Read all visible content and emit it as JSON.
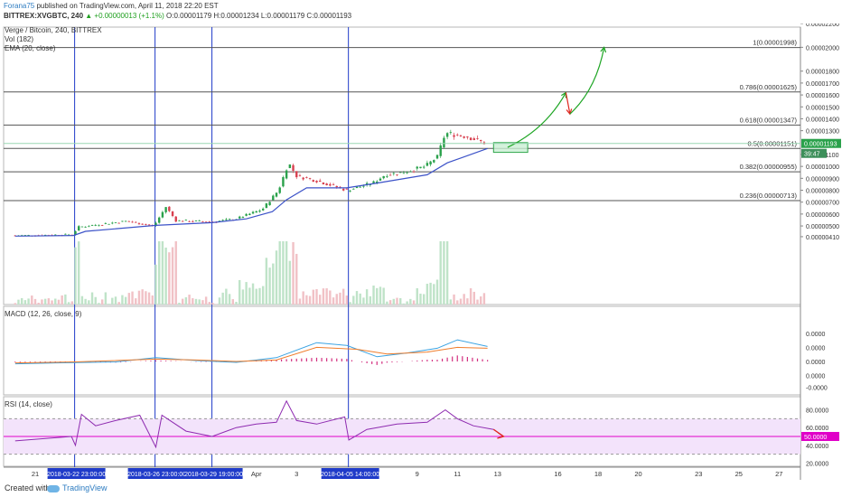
{
  "header": {
    "author": "Forana75",
    "published_text": " published on TradingView.com, April 11, 2018 22:20 EST",
    "symbol": "BITTREX:XVGBTC, 240",
    "change": "▲ +0.00000013 (+1.1%)",
    "ohlc": "O:0.00001179 H:0.00001234 L:0.00001179 C:0.00001193"
  },
  "legend": {
    "title": "Verge / Bitcoin, 240, BITTREX",
    "vol": "Vol (182)",
    "ema": "EMA (20, close)",
    "macd": "MACD (12, 26, close, 9)",
    "rsi": "RSI (14, close)"
  },
  "footer": {
    "created_with": "Created with",
    "brand": "TradingView"
  },
  "colors": {
    "up": "#2aa14b",
    "down": "#d8404f",
    "ema": "#3c52c8",
    "macd": "#3aa3e3",
    "signal": "#ef7d2c",
    "rsi": "#8e2bb0",
    "fib": "#555555",
    "vline": "#1f3bc9",
    "zone": "#2ea64a",
    "arrow_up": "#1fa625",
    "arrow_down": "#e0241e",
    "rsi50": "#e000c8"
  },
  "chart_data": {
    "type": "candlestick",
    "y_ticks": [
      "0.00002200",
      "0.00002000",
      "0.00001800",
      "0.00001700",
      "0.00001600",
      "0.00001500",
      "0.00001400",
      "0.00001300",
      "0.00001100",
      "0.00001000",
      "0.00000900",
      "0.00000800",
      "0.00000700",
      "0.00000600",
      "0.00000500",
      "0.00000410"
    ],
    "y_tick_values": [
      2200,
      2000,
      1800,
      1700,
      1600,
      1500,
      1400,
      1300,
      1100,
      1000,
      900,
      800,
      700,
      600,
      500,
      410
    ],
    "last_price": {
      "label": "0.00001193",
      "value": 1193,
      "countdown": "39:47"
    },
    "fib_levels": [
      {
        "label": "1(0.00001998)",
        "value": 1998
      },
      {
        "label": "0.786(0.00001625)",
        "value": 1625
      },
      {
        "label": "0.618(0.00001347)",
        "value": 1347
      },
      {
        "label": "0.5(0.00001151)",
        "value": 1151
      },
      {
        "label": "0.382(0.00000955)",
        "value": 955
      },
      {
        "label": "0.236(0.00000713)",
        "value": 713
      }
    ],
    "x_ticks": [
      "21",
      "Apr",
      "3",
      "9",
      "11",
      "13",
      "16",
      "18",
      "20",
      "23",
      "25",
      "27"
    ],
    "x_tick_days": [
      21,
      32,
      34,
      40,
      42,
      44,
      47,
      49,
      51,
      54,
      56,
      58
    ],
    "vertical_markers": [
      {
        "label": "2018-03-22 23:00:00",
        "day": 22.96
      },
      {
        "label": "2018-03-26 23:00:00",
        "day": 26.96
      },
      {
        "label": "2018-03-29 19:00:00",
        "day": 29.79
      },
      {
        "label": "2018-04-05 14:00:00",
        "day": 36.58
      }
    ],
    "price_path": [
      [
        20,
        420
      ],
      [
        22.9,
        428
      ],
      [
        23.1,
        490
      ],
      [
        25.5,
        540
      ],
      [
        26.9,
        500
      ],
      [
        27.5,
        660
      ],
      [
        28,
        545
      ],
      [
        29.8,
        535
      ],
      [
        31,
        560
      ],
      [
        32.3,
        640
      ],
      [
        33.1,
        800
      ],
      [
        33.6,
        1030
      ],
      [
        34,
        920
      ],
      [
        35,
        880
      ],
      [
        36.5,
        800
      ],
      [
        37.8,
        860
      ],
      [
        38.4,
        930
      ],
      [
        39.3,
        950
      ],
      [
        40.4,
        1000
      ],
      [
        41,
        1080
      ],
      [
        41.4,
        1280
      ],
      [
        42.5,
        1250
      ],
      [
        43.4,
        1193
      ]
    ],
    "ema_path": [
      [
        20,
        415
      ],
      [
        22.9,
        420
      ],
      [
        23.5,
        455
      ],
      [
        27,
        505
      ],
      [
        29.8,
        528
      ],
      [
        31.5,
        560
      ],
      [
        32.8,
        620
      ],
      [
        33.5,
        720
      ],
      [
        34.5,
        820
      ],
      [
        36.5,
        820
      ],
      [
        38,
        860
      ],
      [
        40.5,
        930
      ],
      [
        41.5,
        1030
      ],
      [
        43.5,
        1151
      ]
    ],
    "target_zone": {
      "day_from": 43.8,
      "day_to": 45.5,
      "value_from": 1118,
      "value_to": 1200
    },
    "projection_up1": {
      "from_day": 44.5,
      "from": 1160,
      "to_day": 47.4,
      "to": 1620
    },
    "projection_down": {
      "from_day": 47.4,
      "from": 1620,
      "to_day": 47.6,
      "to": 1440
    },
    "projection_up2": {
      "from_day": 47.6,
      "from": 1440,
      "to_day": 49.3,
      "to": 2000
    },
    "macd": {
      "ticks": [
        "0.0000",
        "0.0000",
        "0.0000",
        "0.0000",
        "-0.0000",
        "-0.0000"
      ],
      "tick_values": [
        60,
        30,
        0,
        -30,
        -55,
        -80
      ],
      "macd_line": [
        [
          20,
          -5
        ],
        [
          22,
          -3
        ],
        [
          25,
          -1
        ],
        [
          27,
          8
        ],
        [
          29,
          2
        ],
        [
          31,
          -2
        ],
        [
          33,
          8
        ],
        [
          35,
          40
        ],
        [
          36.5,
          34
        ],
        [
          38,
          10
        ],
        [
          39.5,
          18
        ],
        [
          41,
          28
        ],
        [
          42,
          46
        ],
        [
          43.5,
          32
        ]
      ],
      "signal_line": [
        [
          20,
          -3
        ],
        [
          23,
          -1
        ],
        [
          27,
          5
        ],
        [
          29,
          3
        ],
        [
          31,
          0
        ],
        [
          33,
          3
        ],
        [
          35,
          30
        ],
        [
          37,
          26
        ],
        [
          38.5,
          16
        ],
        [
          40.5,
          20
        ],
        [
          42,
          30
        ],
        [
          43.5,
          28
        ]
      ]
    },
    "rsi": {
      "ticks": [
        "80.0000",
        "60.0000",
        "40.0000",
        "20.0000"
      ],
      "tick_values": [
        80,
        60,
        40,
        20
      ],
      "midline_label": "50.0000",
      "band": [
        30,
        70
      ],
      "path": [
        [
          20,
          45
        ],
        [
          22.8,
          50
        ],
        [
          23,
          40
        ],
        [
          23.3,
          75
        ],
        [
          24,
          62
        ],
        [
          25,
          68
        ],
        [
          26.2,
          74
        ],
        [
          27,
          38
        ],
        [
          27.3,
          74
        ],
        [
          28.5,
          56
        ],
        [
          29.8,
          50
        ],
        [
          31,
          60
        ],
        [
          32,
          64
        ],
        [
          33,
          66
        ],
        [
          33.5,
          90
        ],
        [
          34,
          68
        ],
        [
          35,
          64
        ],
        [
          36.4,
          72
        ],
        [
          36.6,
          46
        ],
        [
          37.5,
          58
        ],
        [
          38,
          60
        ],
        [
          39,
          64
        ],
        [
          40.5,
          66
        ],
        [
          41.4,
          80
        ],
        [
          42,
          70
        ],
        [
          42.8,
          62
        ],
        [
          43.8,
          58
        ]
      ],
      "arrow": {
        "from_day": 43.8,
        "from": 58,
        "to_day": 44.3,
        "to": 50
      }
    }
  }
}
